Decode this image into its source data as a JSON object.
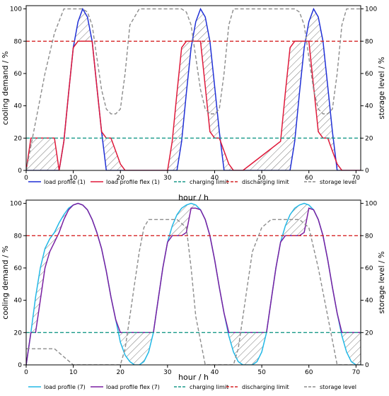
{
  "colors": {
    "load_1": "#1f2fd6",
    "flex_1": "#e0193a",
    "load_7": "#22b8e6",
    "flex_7": "#7a1fa2",
    "charging": "#1a9a8a",
    "discharging": "#d62728",
    "storage": "#8c8c8c"
  },
  "chart_data": [
    {
      "type": "line",
      "xlabel": "hour / h",
      "ylabel": "cooling demand / %",
      "y2label": "storage level / %",
      "xlim": [
        0,
        71
      ],
      "ylim": [
        0,
        102
      ],
      "y2lim": [
        0,
        102
      ],
      "xticks": [
        0,
        10,
        20,
        30,
        40,
        50,
        60,
        70
      ],
      "yticks": [
        0,
        20,
        40,
        60,
        80,
        100
      ],
      "y2ticks": [
        0,
        20,
        40,
        60,
        80,
        100
      ],
      "legend_position": "bottom",
      "hatched_regions": true,
      "series": [
        {
          "name": "load profile (1)",
          "color": "load_1",
          "axis": "left",
          "dash": false,
          "x": [
            0,
            1,
            2,
            3,
            4,
            5,
            6,
            7,
            8,
            9,
            10,
            11,
            12,
            13,
            14,
            15,
            16,
            17,
            18,
            24,
            25,
            26,
            27,
            28,
            29,
            30,
            31,
            32,
            33,
            34,
            35,
            36,
            37,
            38,
            39,
            40,
            41,
            42,
            48,
            49,
            50,
            51,
            52,
            53,
            54,
            55,
            56,
            57,
            58,
            59,
            60,
            61,
            62,
            63,
            64,
            65,
            66,
            71
          ],
          "y": [
            0,
            0,
            0,
            0,
            0,
            0,
            0,
            0,
            18,
            48,
            76,
            92,
            100,
            95,
            80,
            52,
            24,
            0,
            0,
            0,
            0,
            0,
            0,
            0,
            0,
            0,
            0,
            0,
            18,
            48,
            76,
            92,
            100,
            95,
            80,
            52,
            24,
            0,
            0,
            0,
            0,
            0,
            0,
            0,
            0,
            0,
            0,
            18,
            48,
            76,
            92,
            100,
            95,
            80,
            52,
            24,
            0,
            0
          ]
        },
        {
          "name": "load profile flex (1)",
          "color": "flex_1",
          "axis": "left",
          "dash": false,
          "x": [
            0,
            1,
            6,
            7,
            8,
            9,
            10,
            11,
            12,
            13,
            14,
            15,
            16,
            17,
            18,
            19,
            20,
            21,
            22,
            30,
            31,
            32,
            33,
            34,
            35,
            36,
            37,
            38,
            39,
            40,
            41,
            42,
            43,
            44,
            45,
            46,
            54,
            55,
            56,
            57,
            58,
            59,
            60,
            61,
            62,
            63,
            64,
            65,
            66,
            67,
            68,
            69,
            70,
            71
          ],
          "y": [
            0,
            20,
            20,
            0,
            18,
            48,
            76,
            80,
            80,
            80,
            80,
            52,
            24,
            20,
            20,
            12,
            4,
            0,
            0,
            0,
            18,
            48,
            76,
            80,
            80,
            80,
            80,
            52,
            24,
            20,
            20,
            12,
            4,
            0,
            0,
            0,
            18,
            48,
            76,
            80,
            80,
            80,
            80,
            52,
            24,
            20,
            20,
            12,
            4,
            0,
            0,
            0,
            0,
            0
          ]
        },
        {
          "name": "charging limit",
          "color": "charging",
          "axis": "left",
          "dash": true,
          "x": [
            0,
            71
          ],
          "y": [
            20,
            20
          ]
        },
        {
          "name": "discharging limit",
          "color": "discharging",
          "axis": "left",
          "dash": true,
          "x": [
            0,
            71
          ],
          "y": [
            80,
            80
          ]
        },
        {
          "name": "storage level",
          "color": "storage",
          "axis": "right",
          "dash": true,
          "x": [
            0,
            2,
            4,
            6,
            8,
            10,
            11,
            12,
            13,
            14,
            15,
            16,
            17,
            18,
            19,
            20,
            21,
            22,
            24,
            26,
            28,
            30,
            31,
            32,
            33,
            34,
            35,
            36,
            37,
            38,
            39,
            40,
            41,
            42,
            43,
            44,
            45,
            46,
            48,
            50,
            52,
            54,
            55,
            56,
            57,
            58,
            59,
            60,
            61,
            62,
            63,
            64,
            65,
            66,
            67,
            68,
            69,
            70,
            71
          ],
          "y": [
            0,
            30,
            60,
            85,
            100,
            100,
            100,
            100,
            98,
            90,
            70,
            50,
            38,
            35,
            35,
            38,
            60,
            90,
            100,
            100,
            100,
            100,
            100,
            100,
            100,
            98,
            90,
            70,
            50,
            38,
            35,
            35,
            38,
            60,
            90,
            100,
            100,
            100,
            100,
            100,
            100,
            100,
            100,
            100,
            100,
            98,
            90,
            70,
            50,
            38,
            35,
            35,
            38,
            60,
            90,
            100,
            100,
            100,
            100
          ]
        }
      ]
    },
    {
      "type": "line",
      "xlabel": "hour / h",
      "ylabel": "cooling demand / %",
      "y2label": "storage level / %",
      "xlim": [
        0,
        71
      ],
      "ylim": [
        0,
        102
      ],
      "y2lim": [
        0,
        102
      ],
      "xticks": [
        0,
        10,
        20,
        30,
        40,
        50,
        60,
        70
      ],
      "yticks": [
        0,
        20,
        40,
        60,
        80,
        100
      ],
      "y2ticks": [
        0,
        20,
        40,
        60,
        80,
        100
      ],
      "legend_position": "bottom",
      "hatched_regions": true,
      "series": [
        {
          "name": "load profile (7)",
          "color": "load_7",
          "axis": "left",
          "dash": false,
          "x": [
            0,
            1,
            2,
            3,
            4,
            5,
            6,
            7,
            8,
            9,
            10,
            11,
            12,
            13,
            14,
            15,
            16,
            17,
            18,
            19,
            20,
            21,
            22,
            23,
            24,
            25,
            26,
            27,
            28,
            29,
            30,
            31,
            32,
            33,
            34,
            35,
            36,
            37,
            38,
            39,
            40,
            41,
            42,
            43,
            44,
            45,
            46,
            47,
            48,
            49,
            50,
            51,
            52,
            53,
            54,
            55,
            56,
            57,
            58,
            59,
            60,
            61,
            62,
            63,
            64,
            65,
            66,
            67,
            68,
            69,
            70,
            71
          ],
          "y": [
            0,
            20,
            42,
            60,
            72,
            78,
            82,
            88,
            93,
            97,
            99,
            100,
            99,
            96,
            90,
            82,
            72,
            58,
            42,
            28,
            14,
            6,
            2,
            0,
            0,
            2,
            8,
            20,
            40,
            60,
            76,
            86,
            93,
            97,
            99,
            100,
            99,
            96,
            90,
            80,
            65,
            48,
            32,
            18,
            8,
            2,
            0,
            0,
            0,
            2,
            8,
            20,
            40,
            60,
            76,
            86,
            93,
            97,
            99,
            100,
            99,
            96,
            90,
            80,
            65,
            48,
            32,
            18,
            8,
            2,
            0,
            0
          ]
        },
        {
          "name": "load profile flex (7)",
          "color": "flex_7",
          "axis": "left",
          "dash": false,
          "x": [
            0,
            1,
            2,
            3,
            4,
            5,
            6,
            7,
            8,
            9,
            10,
            11,
            12,
            13,
            14,
            15,
            16,
            17,
            18,
            19,
            20,
            21,
            22,
            23,
            24,
            25,
            26,
            27,
            28,
            29,
            30,
            31,
            32,
            33,
            34,
            35,
            36,
            37,
            38,
            39,
            40,
            41,
            42,
            43,
            44,
            45,
            46,
            47,
            48,
            49,
            50,
            51,
            52,
            53,
            54,
            55,
            56,
            57,
            58,
            59,
            60,
            61,
            62,
            63,
            64,
            65,
            66,
            67,
            68,
            69,
            70,
            71
          ],
          "y": [
            0,
            20,
            20,
            40,
            60,
            70,
            76,
            82,
            90,
            96,
            99,
            100,
            99,
            96,
            90,
            82,
            72,
            58,
            42,
            28,
            20,
            20,
            20,
            20,
            20,
            20,
            20,
            20,
            40,
            60,
            76,
            80,
            80,
            80,
            82,
            97,
            97,
            96,
            90,
            80,
            65,
            48,
            32,
            20,
            20,
            20,
            20,
            20,
            20,
            20,
            20,
            20,
            40,
            60,
            76,
            80,
            80,
            80,
            80,
            82,
            97,
            96,
            90,
            80,
            65,
            48,
            32,
            20,
            20,
            20,
            20,
            20
          ]
        },
        {
          "name": "charging limit",
          "color": "charging",
          "axis": "left",
          "dash": true,
          "x": [
            0,
            71
          ],
          "y": [
            20,
            20
          ]
        },
        {
          "name": "discharging limit",
          "color": "discharging",
          "axis": "left",
          "dash": true,
          "x": [
            0,
            71
          ],
          "y": [
            80,
            80
          ]
        },
        {
          "name": "storage level",
          "color": "storage",
          "axis": "right",
          "dash": true,
          "x": [
            0,
            2,
            4,
            6,
            8,
            10,
            12,
            14,
            16,
            18,
            19,
            20,
            21,
            22,
            23,
            24,
            25,
            26,
            27,
            28,
            30,
            32,
            34,
            35,
            36,
            38,
            40,
            42,
            43,
            44,
            45,
            46,
            47,
            48,
            50,
            52,
            54,
            56,
            58,
            60,
            62,
            64,
            66,
            67,
            68,
            69,
            70,
            71
          ],
          "y": [
            10,
            10,
            10,
            10,
            5,
            0,
            0,
            0,
            0,
            0,
            0,
            0,
            10,
            30,
            50,
            70,
            85,
            90,
            90,
            90,
            90,
            90,
            85,
            60,
            30,
            0,
            0,
            0,
            0,
            0,
            10,
            30,
            50,
            70,
            85,
            90,
            90,
            90,
            90,
            85,
            60,
            30,
            0,
            0,
            0,
            0,
            0,
            0
          ]
        }
      ]
    }
  ]
}
